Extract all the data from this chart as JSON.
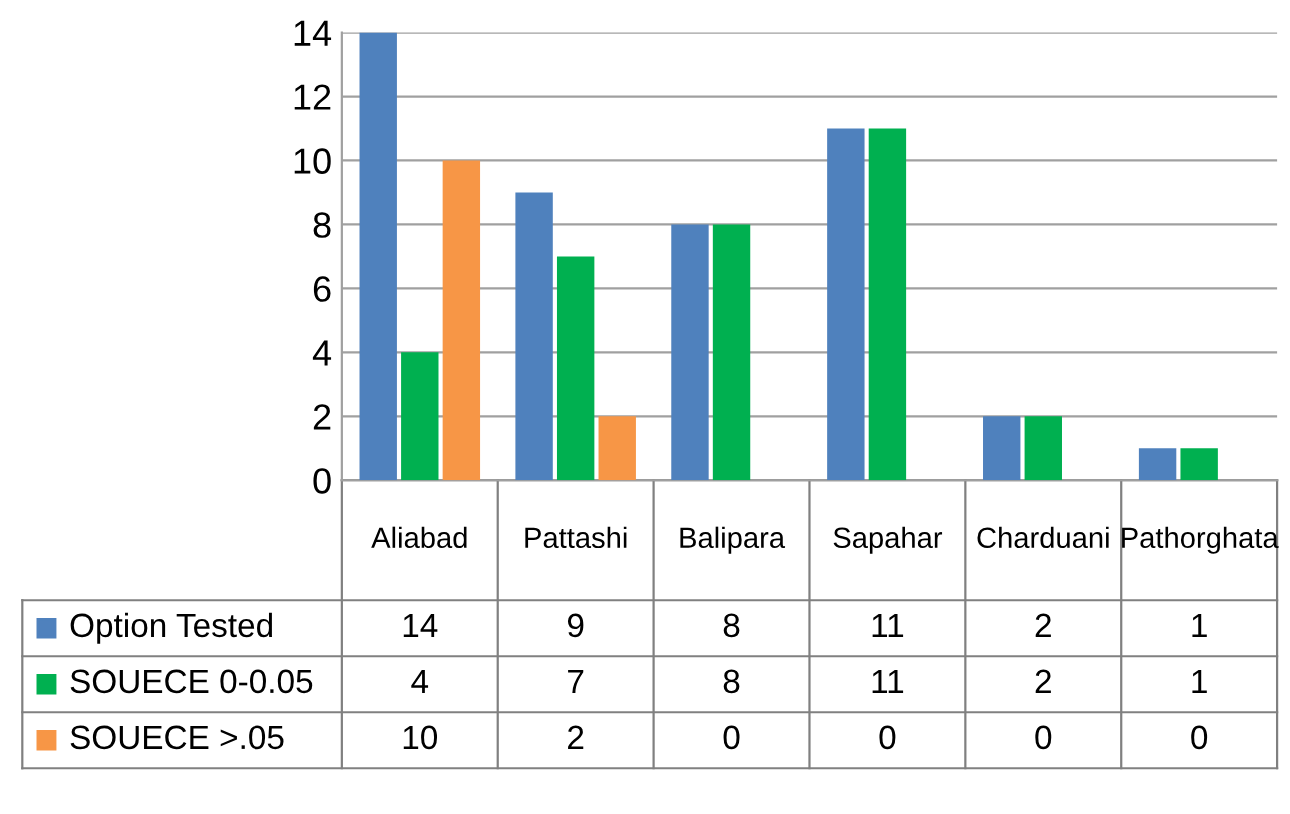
{
  "chart_data": {
    "type": "bar",
    "categories": [
      "Aliabad",
      "Pattashi",
      "Balipara",
      "Sapahar",
      "Charduani",
      "Pathorghata"
    ],
    "series": [
      {
        "name": "Option Tested",
        "color": "#4f81bd",
        "values": [
          14,
          9,
          8,
          11,
          2,
          1
        ]
      },
      {
        "name": "SOUECE 0-0.05",
        "color": "#00b050",
        "values": [
          4,
          7,
          8,
          11,
          2,
          1
        ]
      },
      {
        "name": "SOUECE >.05",
        "color": "#f79646",
        "values": [
          10,
          2,
          0,
          0,
          0,
          0
        ]
      }
    ],
    "ylim": [
      0,
      14
    ],
    "yticks": [
      0,
      2,
      4,
      6,
      8,
      10,
      12,
      14
    ],
    "grid": "y",
    "legend": "bottom",
    "data_labels": true
  }
}
